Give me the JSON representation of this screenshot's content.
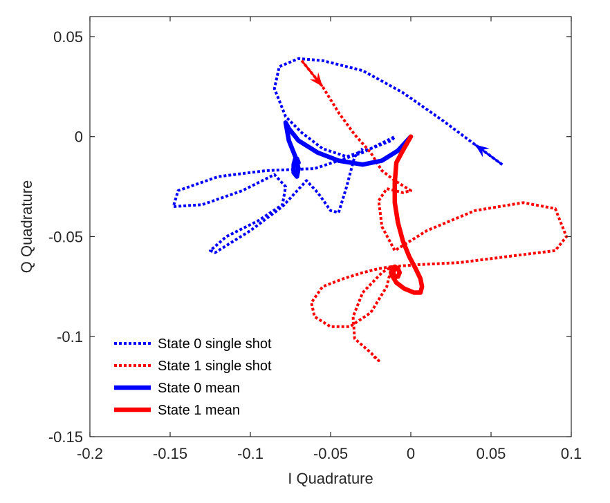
{
  "chart_data": {
    "type": "line",
    "xlabel": "I Quadrature",
    "ylabel": "Q Quadrature",
    "xlim": [
      -0.2,
      0.1
    ],
    "ylim": [
      -0.15,
      0.06
    ],
    "xticks": [
      -0.2,
      -0.15,
      -0.1,
      -0.05,
      0,
      0.05,
      0.1
    ],
    "yticks": [
      -0.15,
      -0.1,
      -0.05,
      0,
      0.05
    ],
    "xtick_labels": [
      "-0.2",
      "-0.15",
      "-0.1",
      "-0.05",
      "0",
      "0.05",
      "0.1"
    ],
    "ytick_labels": [
      "-0.15",
      "-0.1",
      "-0.05",
      "0",
      "0.05"
    ],
    "grid": false,
    "legend_position": "bottom-left",
    "series": [
      {
        "name": "State 0 single shot",
        "color": "#0000ff",
        "style": "dotted",
        "arrow_indices": [
          1
        ],
        "x": [
          0.057,
          0.04,
          0.02,
          -0.005,
          -0.03,
          -0.055,
          -0.07,
          -0.082,
          -0.085,
          -0.078,
          -0.068,
          -0.055,
          -0.04,
          -0.025,
          -0.012,
          -0.01,
          -0.03,
          -0.06,
          -0.09,
          -0.12,
          -0.145,
          -0.148,
          -0.13,
          -0.105,
          -0.085,
          -0.078,
          -0.08,
          -0.095,
          -0.115,
          -0.125,
          -0.122,
          -0.1,
          -0.08,
          -0.065,
          -0.058,
          -0.05,
          -0.045,
          -0.04,
          -0.035,
          -0.03
        ],
        "y": [
          -0.014,
          -0.004,
          0.008,
          0.022,
          0.033,
          0.038,
          0.039,
          0.035,
          0.024,
          0.01,
          0.002,
          -0.006,
          -0.01,
          -0.006,
          -0.002,
          0.0,
          -0.008,
          -0.016,
          -0.017,
          -0.02,
          -0.027,
          -0.035,
          -0.034,
          -0.027,
          -0.019,
          -0.025,
          -0.034,
          -0.042,
          -0.05,
          -0.057,
          -0.058,
          -0.047,
          -0.035,
          -0.022,
          -0.028,
          -0.037,
          -0.038,
          -0.025,
          -0.01,
          -0.006
        ]
      },
      {
        "name": "State 1 single shot",
        "color": "#ff0000",
        "style": "dotted",
        "arrow_indices": [
          1
        ],
        "x": [
          -0.068,
          -0.055,
          -0.045,
          -0.035,
          -0.025,
          -0.018,
          -0.01,
          -0.004,
          0.0,
          -0.005,
          -0.015,
          -0.02,
          -0.018,
          -0.01,
          0.01,
          0.04,
          0.07,
          0.09,
          0.097,
          0.09,
          0.06,
          0.03,
          0.005,
          -0.012,
          -0.02,
          -0.03,
          -0.042,
          -0.055,
          -0.062,
          -0.06,
          -0.05,
          -0.038,
          -0.025,
          -0.015,
          -0.012,
          -0.018,
          -0.03,
          -0.036,
          -0.035,
          -0.025,
          -0.02,
          -0.023
        ],
        "y": [
          0.038,
          0.025,
          0.012,
          0.001,
          -0.008,
          -0.017,
          -0.022,
          -0.025,
          -0.027,
          -0.028,
          -0.026,
          -0.032,
          -0.045,
          -0.057,
          -0.047,
          -0.037,
          -0.033,
          -0.036,
          -0.05,
          -0.057,
          -0.06,
          -0.063,
          -0.064,
          -0.065,
          -0.066,
          -0.068,
          -0.071,
          -0.075,
          -0.083,
          -0.09,
          -0.095,
          -0.095,
          -0.088,
          -0.075,
          -0.065,
          -0.068,
          -0.078,
          -0.09,
          -0.101,
          -0.108,
          -0.112,
          -0.11
        ]
      },
      {
        "name": "State 0 mean",
        "color": "#0000ff",
        "style": "solid",
        "x": [
          0.0,
          -0.008,
          -0.018,
          -0.03,
          -0.045,
          -0.058,
          -0.07,
          -0.076,
          -0.078,
          -0.076,
          -0.072,
          -0.07,
          -0.071,
          -0.073,
          -0.073,
          -0.072,
          -0.071,
          -0.07
        ],
        "y": [
          0.0,
          -0.007,
          -0.012,
          -0.014,
          -0.012,
          -0.008,
          -0.002,
          0.004,
          0.007,
          -0.002,
          -0.01,
          -0.016,
          -0.02,
          -0.018,
          -0.014,
          -0.011,
          -0.011,
          -0.013
        ]
      },
      {
        "name": "State 1 mean",
        "color": "#ff0000",
        "style": "solid",
        "x": [
          0.0,
          -0.005,
          -0.009,
          -0.01,
          -0.01,
          -0.008,
          -0.005,
          -0.001,
          0.003,
          0.006,
          0.007,
          0.006,
          0.002,
          -0.004,
          -0.009,
          -0.012,
          -0.012,
          -0.01,
          -0.008,
          -0.007,
          -0.008,
          -0.01,
          -0.011,
          -0.01
        ],
        "y": [
          0.0,
          -0.007,
          -0.013,
          -0.023,
          -0.033,
          -0.043,
          -0.052,
          -0.06,
          -0.066,
          -0.071,
          -0.075,
          -0.078,
          -0.078,
          -0.076,
          -0.073,
          -0.069,
          -0.066,
          -0.065,
          -0.066,
          -0.068,
          -0.07,
          -0.07,
          -0.068,
          -0.066
        ]
      }
    ]
  }
}
